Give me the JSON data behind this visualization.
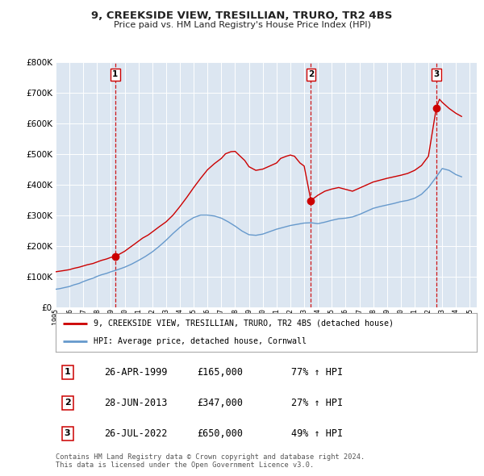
{
  "title": "9, CREEKSIDE VIEW, TRESILLIAN, TRURO, TR2 4BS",
  "subtitle": "Price paid vs. HM Land Registry's House Price Index (HPI)",
  "background_color": "#ffffff",
  "plot_bg_color": "#dce6f1",
  "grid_color": "#ffffff",
  "ylim": [
    0,
    800000
  ],
  "yticks": [
    0,
    100000,
    200000,
    300000,
    400000,
    500000,
    600000,
    700000,
    800000
  ],
  "ytick_labels": [
    "£0",
    "£100K",
    "£200K",
    "£300K",
    "£400K",
    "£500K",
    "£600K",
    "£700K",
    "£800K"
  ],
  "xlim_start": 1995.0,
  "xlim_end": 2025.5,
  "xticks": [
    1995,
    1996,
    1997,
    1998,
    1999,
    2000,
    2001,
    2002,
    2003,
    2004,
    2005,
    2006,
    2007,
    2008,
    2009,
    2010,
    2011,
    2012,
    2013,
    2014,
    2015,
    2016,
    2017,
    2018,
    2019,
    2020,
    2021,
    2022,
    2023,
    2024,
    2025
  ],
  "red_line_color": "#cc0000",
  "blue_line_color": "#6699cc",
  "marker_color": "#cc0000",
  "dashed_line_color": "#cc0000",
  "sale_dates": [
    1999.32,
    2013.49,
    2022.57
  ],
  "sale_prices": [
    165000,
    347000,
    650000
  ],
  "sale_labels": [
    "1",
    "2",
    "3"
  ],
  "legend_red_label": "9, CREEKSIDE VIEW, TRESILLIAN, TRURO, TR2 4BS (detached house)",
  "legend_blue_label": "HPI: Average price, detached house, Cornwall",
  "table_rows": [
    [
      "1",
      "26-APR-1999",
      "£165,000",
      "77% ↑ HPI"
    ],
    [
      "2",
      "28-JUN-2013",
      "£347,000",
      "27% ↑ HPI"
    ],
    [
      "3",
      "26-JUL-2022",
      "£650,000",
      "49% ↑ HPI"
    ]
  ],
  "footer_text": "Contains HM Land Registry data © Crown copyright and database right 2024.\nThis data is licensed under the Open Government Licence v3.0.",
  "red_series_x": [
    1995.0,
    1995.3,
    1995.6,
    1996.0,
    1996.3,
    1996.7,
    1997.0,
    1997.3,
    1997.7,
    1998.0,
    1998.3,
    1998.7,
    1999.0,
    1999.32,
    1999.6,
    2000.0,
    2000.3,
    2000.7,
    2001.0,
    2001.3,
    2001.7,
    2002.0,
    2002.5,
    2003.0,
    2003.5,
    2004.0,
    2004.5,
    2005.0,
    2005.5,
    2006.0,
    2006.5,
    2007.0,
    2007.3,
    2007.7,
    2008.0,
    2008.3,
    2008.7,
    2009.0,
    2009.5,
    2010.0,
    2010.5,
    2011.0,
    2011.3,
    2011.7,
    2012.0,
    2012.3,
    2012.7,
    2013.0,
    2013.49,
    2013.7,
    2014.0,
    2014.5,
    2015.0,
    2015.5,
    2016.0,
    2016.5,
    2017.0,
    2017.5,
    2018.0,
    2018.5,
    2019.0,
    2019.5,
    2020.0,
    2020.5,
    2021.0,
    2021.5,
    2022.0,
    2022.57,
    2022.8,
    2023.0,
    2023.5,
    2024.0,
    2024.4
  ],
  "red_series_y": [
    115000,
    117000,
    119000,
    122000,
    126000,
    130000,
    134000,
    138000,
    142000,
    147000,
    152000,
    157000,
    162000,
    165000,
    172000,
    182000,
    192000,
    205000,
    215000,
    225000,
    235000,
    245000,
    262000,
    278000,
    300000,
    328000,
    358000,
    390000,
    420000,
    448000,
    468000,
    485000,
    500000,
    507000,
    508000,
    495000,
    478000,
    458000,
    446000,
    450000,
    460000,
    470000,
    485000,
    492000,
    496000,
    492000,
    470000,
    460000,
    347000,
    355000,
    365000,
    378000,
    385000,
    390000,
    384000,
    378000,
    388000,
    398000,
    408000,
    414000,
    420000,
    425000,
    430000,
    436000,
    446000,
    462000,
    492000,
    650000,
    678000,
    668000,
    648000,
    632000,
    622000
  ],
  "blue_series_x": [
    1995.0,
    1995.3,
    1995.6,
    1996.0,
    1996.3,
    1996.7,
    1997.0,
    1997.3,
    1997.7,
    1998.0,
    1998.3,
    1998.7,
    1999.0,
    1999.5,
    2000.0,
    2000.5,
    2001.0,
    2001.5,
    2002.0,
    2002.5,
    2003.0,
    2003.5,
    2004.0,
    2004.5,
    2005.0,
    2005.5,
    2006.0,
    2006.5,
    2007.0,
    2007.5,
    2008.0,
    2008.5,
    2009.0,
    2009.5,
    2010.0,
    2010.5,
    2011.0,
    2011.5,
    2012.0,
    2012.5,
    2013.0,
    2013.5,
    2014.0,
    2014.5,
    2015.0,
    2015.5,
    2016.0,
    2016.5,
    2017.0,
    2017.5,
    2018.0,
    2018.5,
    2019.0,
    2019.5,
    2020.0,
    2020.5,
    2021.0,
    2021.5,
    2022.0,
    2022.5,
    2023.0,
    2023.5,
    2024.0,
    2024.4
  ],
  "blue_series_y": [
    58000,
    60000,
    63000,
    67000,
    72000,
    77000,
    83000,
    88000,
    94000,
    100000,
    105000,
    110000,
    115000,
    122000,
    130000,
    140000,
    152000,
    165000,
    180000,
    198000,
    218000,
    240000,
    260000,
    278000,
    292000,
    300000,
    300000,
    297000,
    290000,
    278000,
    264000,
    248000,
    236000,
    234000,
    238000,
    246000,
    254000,
    260000,
    266000,
    270000,
    274000,
    275000,
    272000,
    277000,
    283000,
    288000,
    290000,
    294000,
    302000,
    312000,
    322000,
    328000,
    333000,
    338000,
    344000,
    348000,
    355000,
    368000,
    390000,
    420000,
    452000,
    446000,
    432000,
    425000
  ]
}
